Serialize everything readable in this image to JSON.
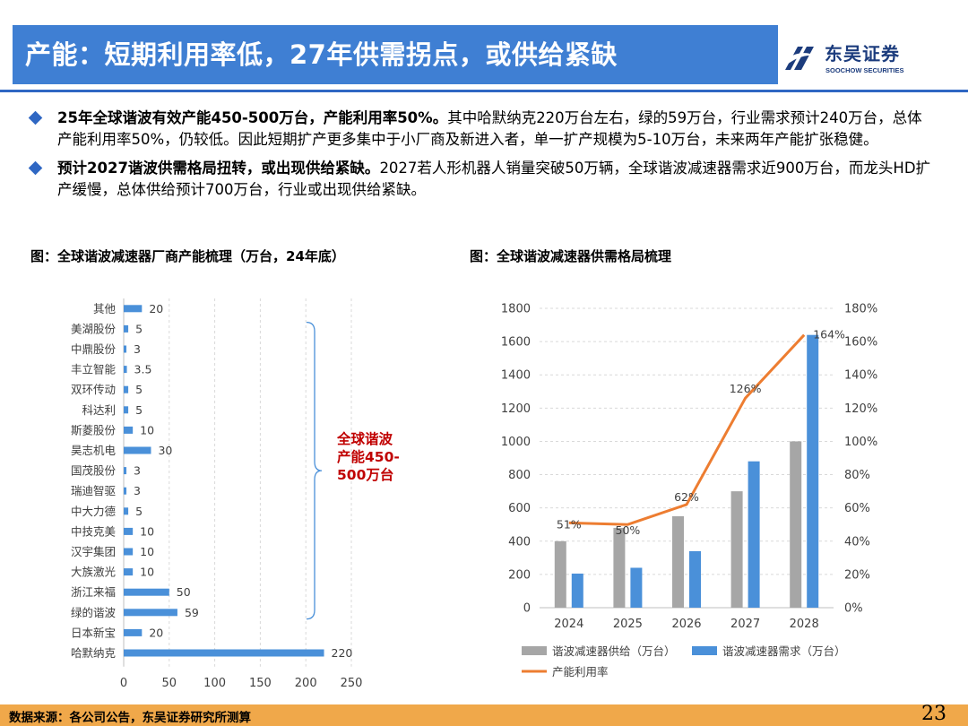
{
  "header": {
    "title": "产能：短期利用率低，27年供需拐点，或供给紧缺",
    "logo_cn": "东吴证券",
    "logo_en": "SOOCHOW SECURITIES"
  },
  "bullets": [
    {
      "bold": "25年全球谐波有效产能450-500万台，产能利用率50%。",
      "text": "其中哈默纳克220万台左右，绿的59万台，行业需求预计240万台，总体产能利用率50%，仍较低。因此短期扩产更多集中于小厂商及新进入者，单一扩产规模为5-10万台，未来两年产能扩张稳健。"
    },
    {
      "bold": "预计2027谐波供需格局扭转，或出现供给紧缺。",
      "text": "2027若人形机器人销量突破50万辆，全球谐波减速器需求近900万台，而龙头HD扩产缓慢，总体供给预计700万台，行业或出现供给紧缺。"
    }
  ],
  "captions": {
    "left": "图：全球谐波减速器厂商产能梳理（万台，24年底）",
    "right": "图：全球谐波减速器供需格局梳理"
  },
  "chart_data": [
    {
      "type": "bar",
      "orientation": "horizontal",
      "categories": [
        "其他",
        "美湖股份",
        "中鼎股份",
        "丰立智能",
        "双环传动",
        "科达利",
        "斯菱股份",
        "昊志机电",
        "国茂股份",
        "瑞迪智驱",
        "中大力德",
        "中技克美",
        "汉宇集团",
        "大族激光",
        "浙江来福",
        "绿的谐波",
        "日本新宝",
        "哈默纳克"
      ],
      "values": [
        20,
        5,
        3,
        3.5,
        5,
        5,
        10,
        30,
        3,
        3,
        5,
        10,
        10,
        10,
        50,
        59,
        20,
        220
      ],
      "value_labels": [
        "20",
        "5",
        "3",
        "3.5",
        "5",
        "5",
        "10",
        "30",
        "3",
        "3",
        "5",
        "10",
        "10",
        "10",
        "50",
        "59",
        "20",
        "220"
      ],
      "xlim": [
        0,
        250
      ],
      "xticks": [
        "0",
        "50",
        "100",
        "150",
        "200",
        "250"
      ],
      "grid": true,
      "color": "#4a90d9",
      "annotation": "全球谐波产能450-500万台",
      "annotation_lines": [
        "全球谐波",
        "产能450-",
        "500万台"
      ],
      "annotation_color": "#c00000"
    },
    {
      "type": "bar+line",
      "categories": [
        "2024",
        "2025",
        "2026",
        "2027",
        "2028"
      ],
      "series": [
        {
          "name": "谐波减速器供给（万台）",
          "values": [
            400,
            480,
            550,
            700,
            1000
          ],
          "color": "#a6a6a6",
          "axis": "left"
        },
        {
          "name": "谐波减速器需求（万台）",
          "values": [
            205,
            240,
            340,
            880,
            1640
          ],
          "color": "#4a90d9",
          "axis": "left"
        },
        {
          "name": "产能利用率",
          "type": "line",
          "values": [
            51,
            50,
            62,
            126,
            164
          ],
          "labels": [
            "51%",
            "50%",
            "62%",
            "126%",
            "164%"
          ],
          "color": "#ed7d31",
          "axis": "right"
        }
      ],
      "ylim_left": [
        0,
        1800
      ],
      "yticks_left": [
        "0",
        "200",
        "400",
        "600",
        "800",
        "1000",
        "1200",
        "1400",
        "1600",
        "1800"
      ],
      "ylim_right": [
        0,
        180
      ],
      "yticks_right": [
        "0%",
        "20%",
        "40%",
        "60%",
        "80%",
        "100%",
        "120%",
        "140%",
        "160%",
        "180%"
      ],
      "grid": true,
      "legend_position": "bottom"
    }
  ],
  "footer": {
    "source": "数据来源：各公司公告，东吴证券研究所测算",
    "page": "23"
  }
}
